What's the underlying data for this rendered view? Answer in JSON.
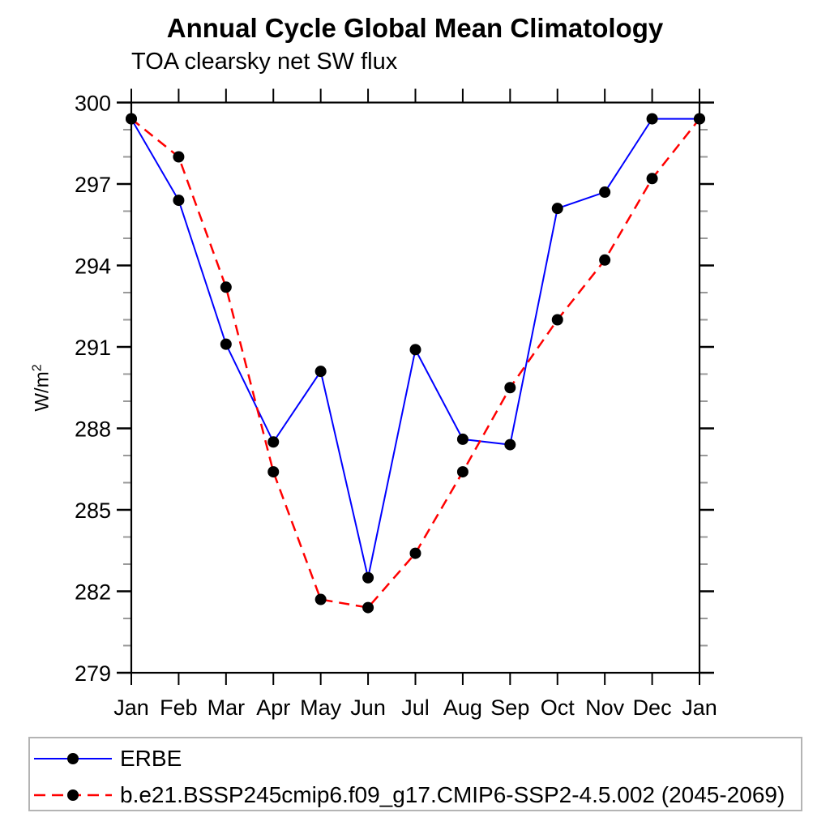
{
  "chart_data": {
    "type": "line",
    "title": "Annual Cycle Global Mean Climatology",
    "subtitle": "TOA clearsky net SW flux",
    "ylabel_base": "W/m",
    "ylabel_exp": "2",
    "categories": [
      "Jan",
      "Feb",
      "Mar",
      "Apr",
      "May",
      "Jun",
      "Jul",
      "Aug",
      "Sep",
      "Oct",
      "Nov",
      "Dec",
      "Jan"
    ],
    "ylim": [
      279,
      300
    ],
    "y_major_ticks": [
      279,
      282,
      285,
      288,
      291,
      294,
      297,
      300
    ],
    "y_minor_step": 1,
    "grid": false,
    "legend_position": "bottom-left-box",
    "series": [
      {
        "name": "ERBE",
        "color": "#0000ff",
        "style": "solid",
        "marker": "circle",
        "marker_color": "#000000",
        "values": [
          299.4,
          296.4,
          291.1,
          287.5,
          290.1,
          282.5,
          290.9,
          287.6,
          287.4,
          296.1,
          296.7,
          299.4,
          299.4
        ]
      },
      {
        "name": "b.e21.BSSP245cmip6.f09_g17.CMIP6-SSP2-4.5.002 (2045-2069)",
        "color": "#ff0000",
        "style": "dashed",
        "marker": "circle",
        "marker_color": "#000000",
        "values": [
          299.4,
          298.0,
          293.2,
          286.4,
          281.7,
          281.4,
          283.4,
          286.4,
          289.5,
          292.0,
          294.2,
          297.2,
          299.4
        ]
      }
    ]
  }
}
